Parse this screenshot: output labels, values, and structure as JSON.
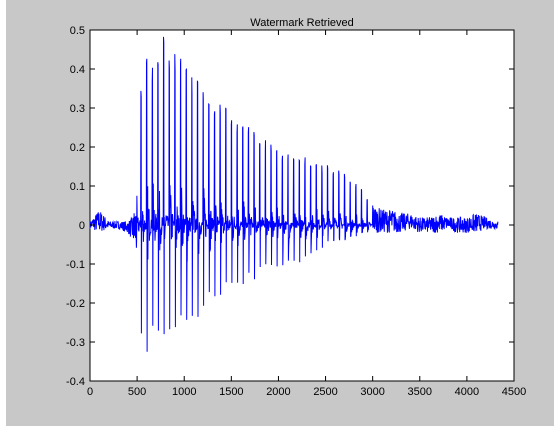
{
  "chart_data": {
    "type": "line",
    "title": "Watermark Retrieved",
    "xlabel": "",
    "ylabel": "",
    "xlim": [
      0,
      4500
    ],
    "ylim": [
      -0.4,
      0.5
    ],
    "xticks": [
      0,
      500,
      1000,
      1500,
      2000,
      2500,
      3000,
      3500,
      4000,
      4500
    ],
    "yticks": [
      0.5,
      0.4,
      0.3,
      0.2,
      0.1,
      0,
      -0.1,
      -0.2,
      -0.3,
      -0.4
    ],
    "xtick_labels": [
      "0",
      "500",
      "1000",
      "1500",
      "2000",
      "2500",
      "3000",
      "3500",
      "4000",
      "4500"
    ],
    "ytick_labels": [
      "0.5",
      "0.4",
      "0.3",
      "0.2",
      "0.1",
      "0",
      "-0.1",
      "-0.2",
      "-0.3",
      "-0.4"
    ],
    "grid": false,
    "line_color": "#0000ff",
    "series": [
      {
        "x": [
          0,
          100,
          200,
          300,
          400,
          450,
          500,
          520,
          560,
          610,
          660,
          700,
          760,
          800,
          860,
          920,
          980,
          1040,
          1100,
          1160,
          1220,
          1280,
          1340,
          1400,
          1460,
          1520,
          1580,
          1640,
          1700,
          1760,
          1820,
          1880,
          1940,
          2000,
          2060,
          2120,
          2180,
          2240,
          2300,
          2360,
          2420,
          2480,
          2540,
          2600,
          2660,
          2720,
          2780,
          2840,
          2900,
          2960,
          3020,
          3100,
          3200,
          3300,
          3400,
          3500,
          3600,
          3700,
          3800,
          3900,
          4000,
          4100,
          4200,
          4300,
          4330
        ],
        "upper": [
          0.01,
          0.04,
          0.01,
          0.01,
          0.01,
          0.02,
          0.08,
          0.37,
          0.38,
          0.44,
          0.42,
          0.47,
          0.49,
          0.48,
          0.46,
          0.44,
          0.43,
          0.41,
          0.38,
          0.37,
          0.35,
          0.34,
          0.33,
          0.32,
          0.3,
          0.28,
          0.27,
          0.26,
          0.25,
          0.24,
          0.23,
          0.22,
          0.2,
          0.2,
          0.19,
          0.19,
          0.18,
          0.18,
          0.18,
          0.17,
          0.16,
          0.15,
          0.16,
          0.14,
          0.15,
          0.13,
          0.12,
          0.1,
          0.09,
          0.06,
          0.05,
          0.04,
          0.04,
          0.03,
          0.03,
          0.02,
          0.02,
          0.03,
          0.02,
          0.02,
          0.02,
          0.03,
          0.02,
          0.01,
          0.01
        ],
        "lower": [
          -0.01,
          -0.02,
          -0.01,
          -0.01,
          -0.02,
          -0.04,
          -0.1,
          -0.22,
          -0.34,
          -0.33,
          -0.3,
          -0.33,
          -0.3,
          -0.3,
          -0.31,
          -0.27,
          -0.28,
          -0.26,
          -0.23,
          -0.24,
          -0.22,
          -0.2,
          -0.19,
          -0.19,
          -0.17,
          -0.16,
          -0.17,
          -0.15,
          -0.14,
          -0.14,
          -0.13,
          -0.12,
          -0.12,
          -0.13,
          -0.11,
          -0.1,
          -0.1,
          -0.1,
          -0.09,
          -0.08,
          -0.08,
          -0.06,
          -0.05,
          -0.05,
          -0.04,
          -0.04,
          -0.03,
          -0.03,
          -0.02,
          -0.02,
          -0.02,
          -0.02,
          -0.02,
          -0.02,
          -0.01,
          -0.02,
          -0.02,
          -0.02,
          -0.01,
          -0.02,
          -0.02,
          -0.02,
          -0.01,
          -0.01,
          -0.01
        ]
      }
    ]
  }
}
